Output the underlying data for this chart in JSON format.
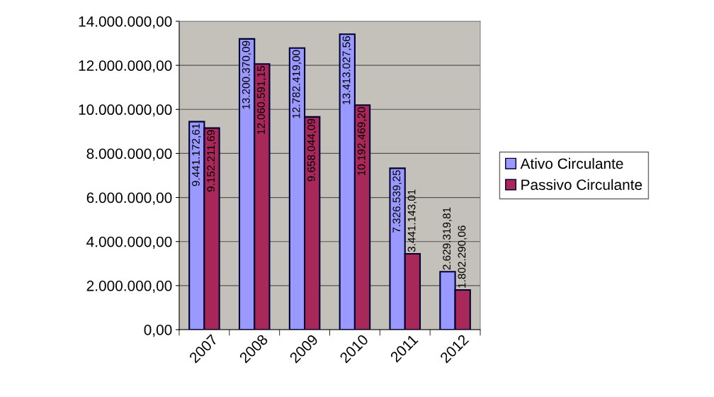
{
  "chart_data": {
    "type": "bar",
    "categories": [
      "2007",
      "2008",
      "2009",
      "2010",
      "2011",
      "2012"
    ],
    "series": [
      {
        "name": "Ativo Circulante",
        "color": "#9999ff",
        "values": [
          9441172.61,
          13200370.09,
          12782419.0,
          13413027.56,
          7326539.25,
          2629319.81
        ],
        "value_labels": [
          "9.441.172,61",
          "13.200.370,09",
          "12.782.419,00",
          "13.413.027,56",
          "7.326.539,25",
          "2.629.319,81"
        ]
      },
      {
        "name": "Passivo Circulante",
        "color": "#a8285a",
        "values": [
          9152211.69,
          12060591.15,
          9658044.09,
          10192469.2,
          3441143.01,
          1802290.06
        ],
        "value_labels": [
          "9.152.211,69",
          "12.060.591,15",
          "9.658.044,09",
          "10.192.469,20",
          "3.441.143,01",
          "1.802.290,06"
        ]
      }
    ],
    "ylim": [
      0,
      14000000
    ],
    "yticks": [
      {
        "value": 0,
        "label": "0,00"
      },
      {
        "value": 2000000,
        "label": "2.000.000,00"
      },
      {
        "value": 4000000,
        "label": "4.000.000,00"
      },
      {
        "value": 6000000,
        "label": "6.000.000,00"
      },
      {
        "value": 8000000,
        "label": "8.000.000,00"
      },
      {
        "value": 10000000,
        "label": "10.000.000,00"
      },
      {
        "value": 12000000,
        "label": "12.000.000,00"
      },
      {
        "value": 14000000,
        "label": "14.000.000,00"
      }
    ],
    "grid": "y",
    "legend": "right"
  }
}
